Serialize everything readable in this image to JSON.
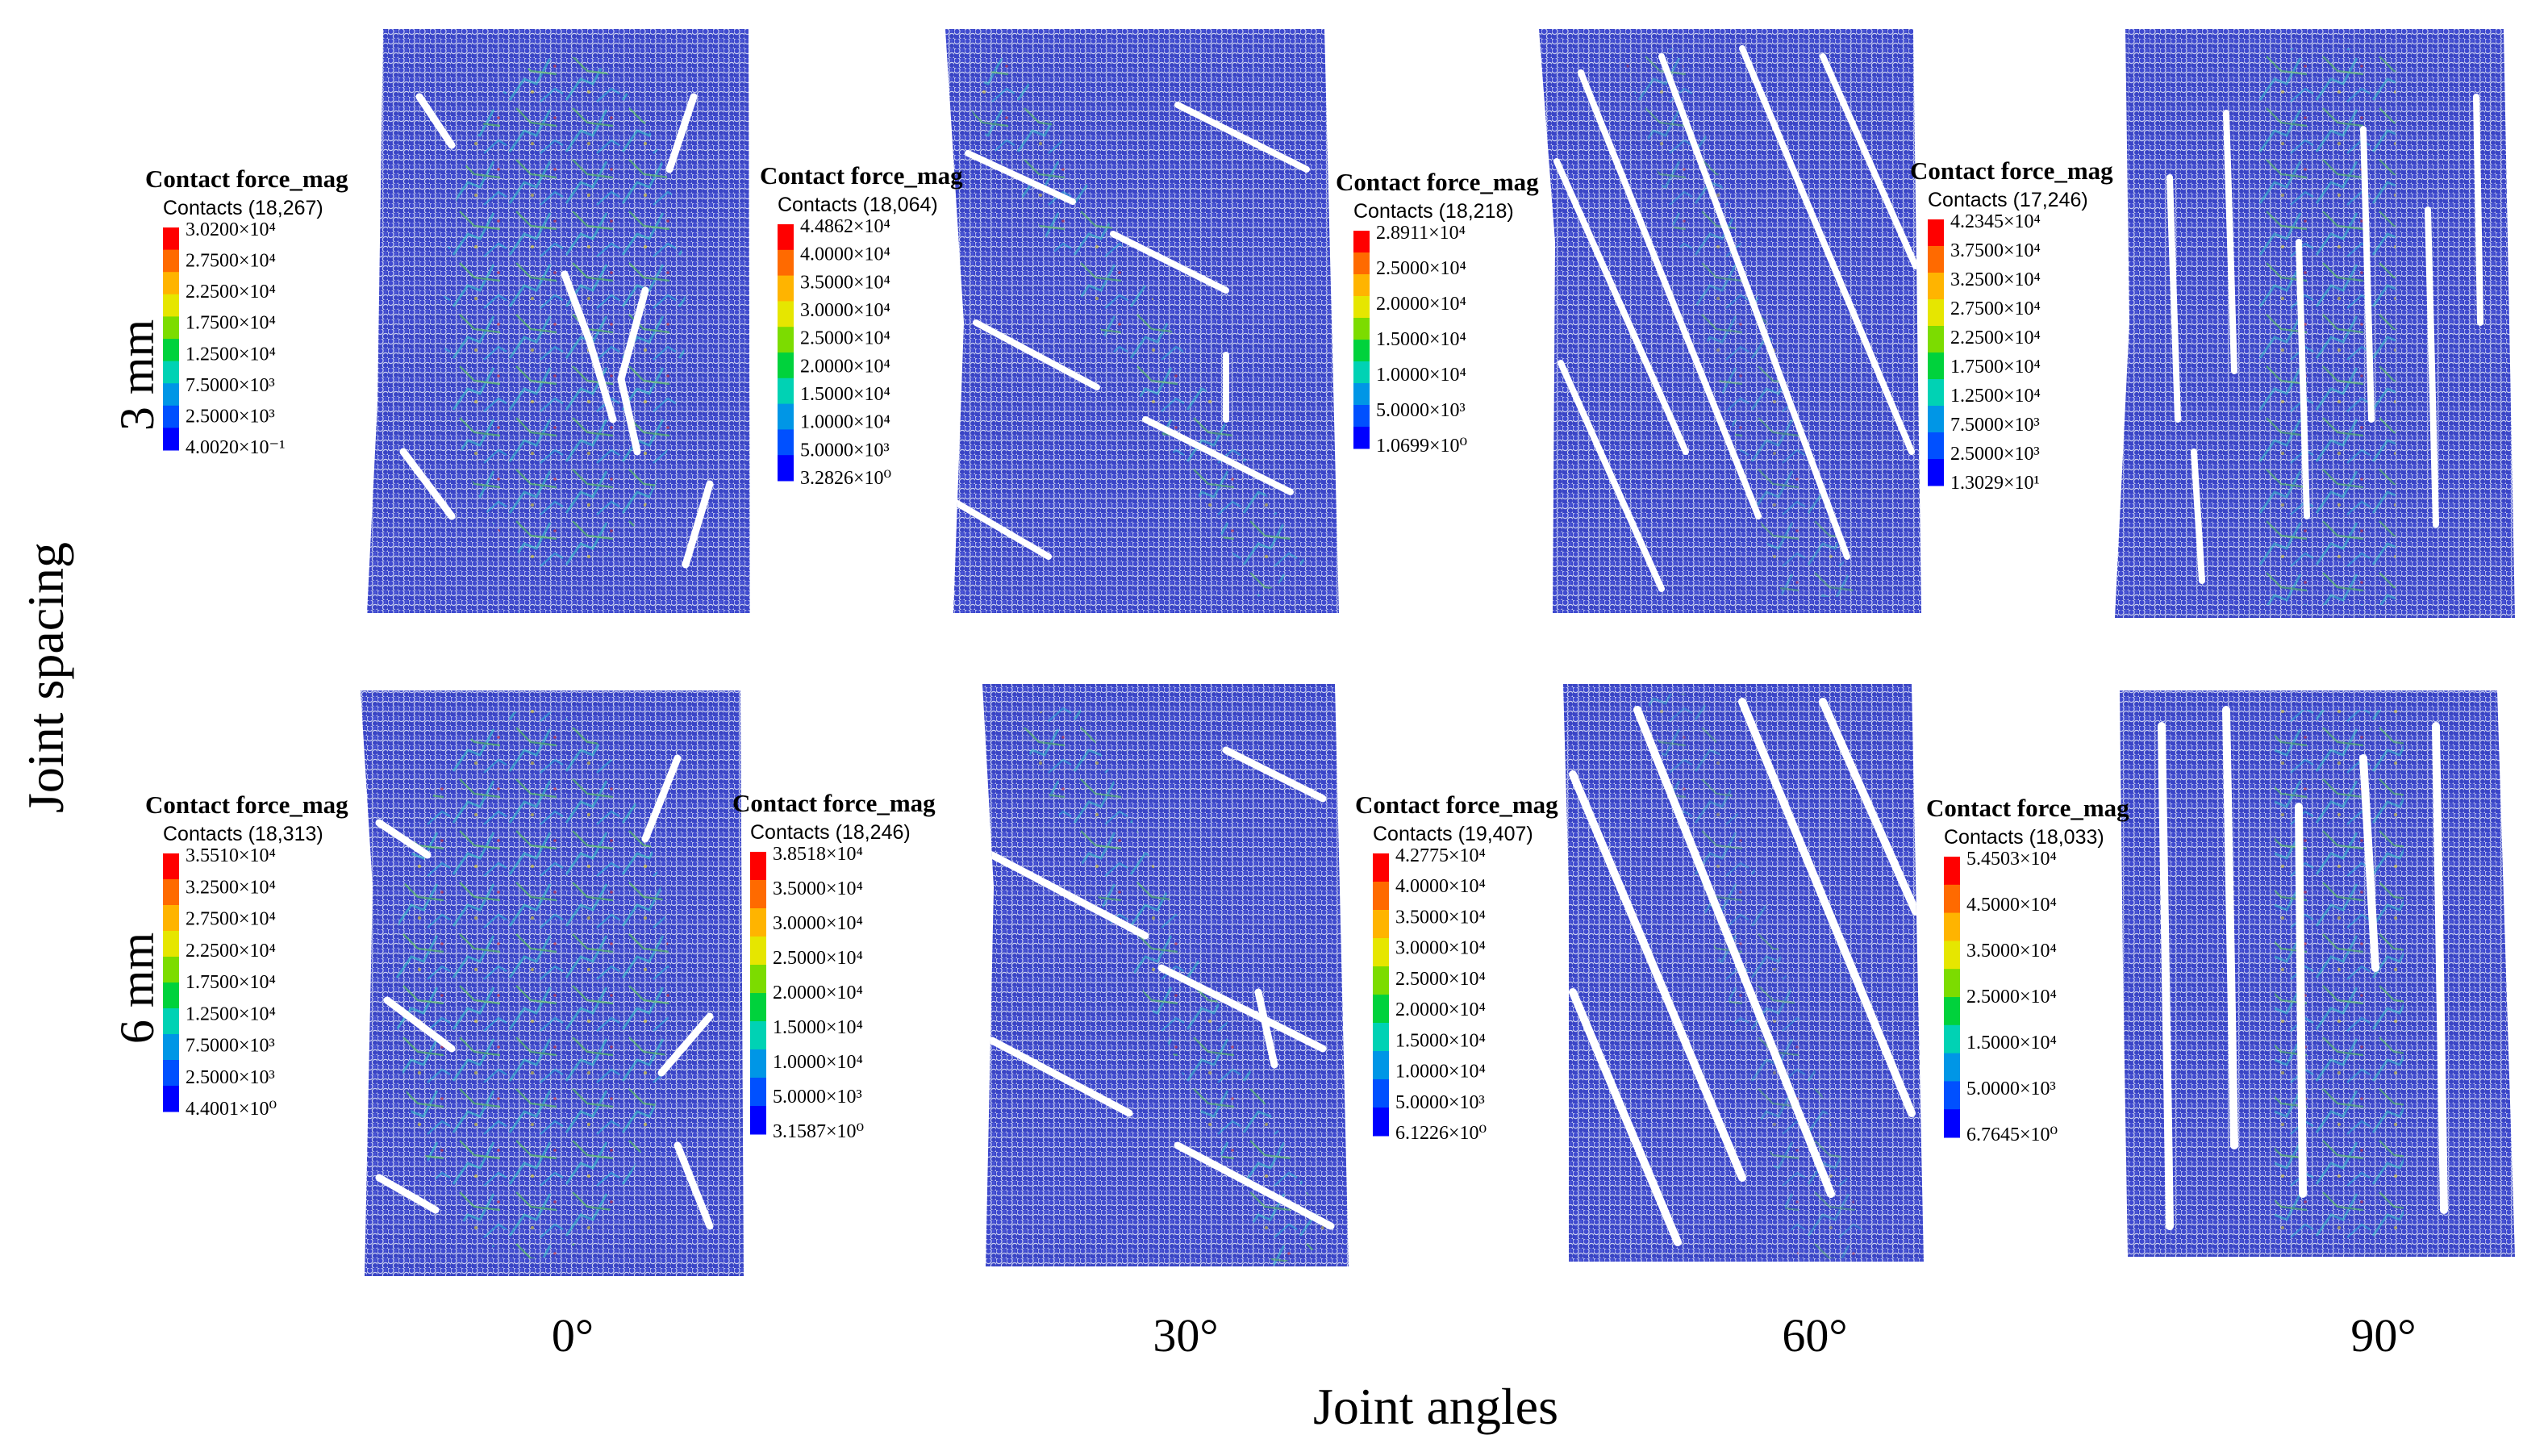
{
  "figure": {
    "y_axis_title": "Joint spacing",
    "x_axis_title": "Joint angles",
    "rows": [
      {
        "label": "3 mm"
      },
      {
        "label": "6 mm"
      }
    ],
    "columns": [
      {
        "label": "0°",
        "angle": 0
      },
      {
        "label": "30°",
        "angle": 30
      },
      {
        "label": "60°",
        "angle": 60
      },
      {
        "label": "90°",
        "angle": 90
      }
    ]
  },
  "colors": {
    "particle_blue": "#3b46c8",
    "particle_light": "#dfe3f5",
    "force_cyan": "#2fc6c9",
    "force_green": "#58d24a",
    "force_red": "#e52a1c",
    "crack_white": "#ffffff",
    "colorbar": [
      "#ff0000",
      "#ff6a00",
      "#ffb400",
      "#e6e600",
      "#7cdc00",
      "#00d23c",
      "#00d2b4",
      "#0096e6",
      "#0050ff",
      "#0000ff"
    ]
  },
  "legends": [
    {
      "id": "r1c1",
      "title": "Contact force_mag",
      "subtitle": "Contacts (18,267)",
      "values": [
        "3.0200×10⁴",
        "2.7500×10⁴",
        "2.2500×10⁴",
        "1.7500×10⁴",
        "1.2500×10⁴",
        "7.5000×10³",
        "2.5000×10³",
        "4.0020×10⁻¹"
      ]
    },
    {
      "id": "r1c2",
      "title": "Contact force_mag",
      "subtitle": "Contacts (18,064)",
      "values": [
        "4.4862×10⁴",
        "4.0000×10⁴",
        "3.5000×10⁴",
        "3.0000×10⁴",
        "2.5000×10⁴",
        "2.0000×10⁴",
        "1.5000×10⁴",
        "1.0000×10⁴",
        "5.0000×10³",
        "3.2826×10⁰"
      ]
    },
    {
      "id": "r1c3",
      "title": "Contact force_mag",
      "subtitle": "Contacts (18,218)",
      "values": [
        "2.8911×10⁴",
        "2.5000×10⁴",
        "2.0000×10⁴",
        "1.5000×10⁴",
        "1.0000×10⁴",
        "5.0000×10³",
        "1.0699×10⁰"
      ]
    },
    {
      "id": "r1c4",
      "title": "Contact force_mag",
      "subtitle": "Contacts (17,246)",
      "values": [
        "4.2345×10⁴",
        "3.7500×10⁴",
        "3.2500×10⁴",
        "2.7500×10⁴",
        "2.2500×10⁴",
        "1.7500×10⁴",
        "1.2500×10⁴",
        "7.5000×10³",
        "2.5000×10³",
        "1.3029×10¹"
      ]
    },
    {
      "id": "r2c1",
      "title": "Contact force_mag",
      "subtitle": "Contacts (18,313)",
      "values": [
        "3.5510×10⁴",
        "3.2500×10⁴",
        "2.7500×10⁴",
        "2.2500×10⁴",
        "1.7500×10⁴",
        "1.2500×10⁴",
        "7.5000×10³",
        "2.5000×10³",
        "4.4001×10⁰"
      ]
    },
    {
      "id": "r2c2",
      "title": "Contact force_mag",
      "subtitle": "Contacts (18,246)",
      "values": [
        "3.8518×10⁴",
        "3.5000×10⁴",
        "3.0000×10⁴",
        "2.5000×10⁴",
        "2.0000×10⁴",
        "1.5000×10⁴",
        "1.0000×10⁴",
        "5.0000×10³",
        "3.1587×10⁰"
      ]
    },
    {
      "id": "r2c3",
      "title": "Contact force_mag",
      "subtitle": "Contacts (19,407)",
      "values": [
        "4.2775×10⁴",
        "4.0000×10⁴",
        "3.5000×10⁴",
        "3.0000×10⁴",
        "2.5000×10⁴",
        "2.0000×10⁴",
        "1.5000×10⁴",
        "1.0000×10⁴",
        "5.0000×10³",
        "6.1226×10⁰"
      ]
    },
    {
      "id": "r2c4",
      "title": "Contact force_mag",
      "subtitle": "Contacts (18,033)",
      "values": [
        "5.4503×10⁴",
        "4.5000×10⁴",
        "3.5000×10⁴",
        "2.5000×10⁴",
        "1.5000×10⁴",
        "5.0000×10³",
        "6.7645×10⁰"
      ]
    }
  ]
}
